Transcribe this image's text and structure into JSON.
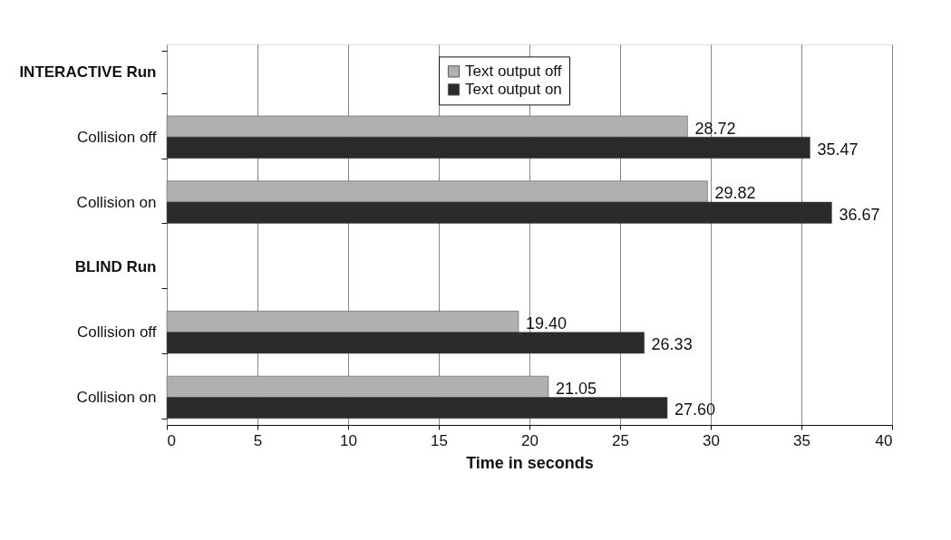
{
  "chart_data": {
    "type": "bar",
    "orientation": "horizontal",
    "xlabel": "Time in seconds",
    "categories": [
      "INTERACTIVE Run",
      "Collision off",
      "Collision on",
      "BLIND Run",
      "Collision off",
      "Collision on"
    ],
    "series": [
      {
        "name": "Text output off",
        "color": "#b0b0b0",
        "values": [
          null,
          28.72,
          29.82,
          null,
          19.4,
          21.05
        ],
        "value_labels": [
          null,
          "28.72",
          "29.82",
          null,
          "19.40",
          "21.05"
        ]
      },
      {
        "name": "Text output on",
        "color": "#2b2b2b",
        "values": [
          null,
          35.47,
          36.67,
          null,
          26.33,
          27.6
        ],
        "value_labels": [
          null,
          "35.47",
          "36.67",
          null,
          "26.33",
          "27.60"
        ]
      }
    ],
    "xlim": [
      0,
      40
    ],
    "xticks": [
      0,
      5,
      10,
      15,
      20,
      25,
      30,
      35,
      40
    ],
    "grid": "x",
    "legend": "top"
  }
}
